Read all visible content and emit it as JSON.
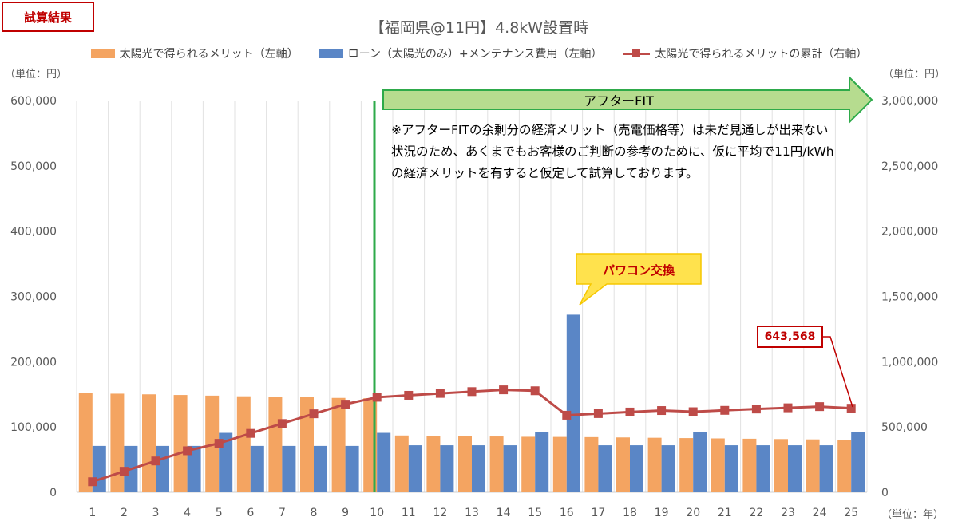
{
  "badge": "試算結果",
  "legend_items": {
    "orange": "太陽光で得られるメリット（左軸）",
    "blue": "ローン（太陽光のみ）+メンテナンス費用（左軸）",
    "red": "太陽光で得られるメリットの累計（右軸）"
  },
  "units": {
    "left": "（単位：円）",
    "right": "（単位：円）",
    "x": "（単位：年）"
  },
  "after_fit": "アフターFIT",
  "note_text": "※アフターFITの余剰分の経済メリット（売電価格等）は未だ見通しが出来ない状況のため、あくまでもお客様のご判断の参考のために、仮に平均で11円/kWhの経済メリットを有すると仮定して試算しております。",
  "callout": "パワコン交換",
  "cum_final_label": "643,568",
  "colors": {
    "orange": "#f4a461",
    "blue": "#5a86c6",
    "red": "#be4b48",
    "green_line": "#2eaa4a",
    "arrow_fill": "#b6dc8f",
    "callout_fill": "#ffe24d"
  },
  "chart_data": {
    "type": "bar",
    "title": "【福岡県@11円】4.8kW設置時",
    "categories": [
      "1",
      "2",
      "3",
      "4",
      "5",
      "6",
      "7",
      "8",
      "9",
      "10",
      "11",
      "12",
      "13",
      "14",
      "15",
      "16",
      "17",
      "18",
      "19",
      "20",
      "21",
      "22",
      "23",
      "24",
      "25"
    ],
    "series": [
      {
        "name": "太陽光で得られるメリット（左軸）",
        "type": "bar",
        "axis": "left",
        "values": [
          152000,
          151000,
          150000,
          149000,
          148000,
          147000,
          146500,
          145500,
          144500,
          144000,
          87000,
          86500,
          86000,
          85500,
          85000,
          84800,
          84500,
          84000,
          83500,
          83000,
          82500,
          82000,
          81500,
          81000,
          80500
        ]
      },
      {
        "name": "ローン（太陽光のみ）+メンテナンス費用（左軸）",
        "type": "bar",
        "axis": "left",
        "values": [
          71000,
          71000,
          71000,
          71000,
          91000,
          71000,
          71000,
          71000,
          71000,
          91000,
          72000,
          72000,
          72000,
          72000,
          92000,
          272000,
          72000,
          72000,
          72000,
          92000,
          72000,
          72000,
          72000,
          72000,
          92000
        ]
      },
      {
        "name": "太陽光で得られるメリットの累計（右軸）",
        "type": "line",
        "axis": "right",
        "values": [
          81000,
          161000,
          240000,
          318000,
          375000,
          451000,
          526500,
          601000,
          674500,
          727500,
          742500,
          757000,
          771000,
          784500,
          777500,
          590000,
          602500,
          614500,
          626000,
          617000,
          627500,
          637500,
          647000,
          656000,
          643568
        ]
      }
    ],
    "ylim_left": [
      0,
      600000
    ],
    "ylim_right": [
      0,
      3000000
    ],
    "yticks_left": [
      "0",
      "100,000",
      "200,000",
      "300,000",
      "400,000",
      "500,000",
      "600,000"
    ],
    "yticks_right": [
      "0",
      "500,000",
      "1,000,000",
      "1,500,000",
      "2,000,000",
      "2,500,000",
      "3,000,000"
    ],
    "grid": "vertical",
    "legend_position": "top"
  }
}
